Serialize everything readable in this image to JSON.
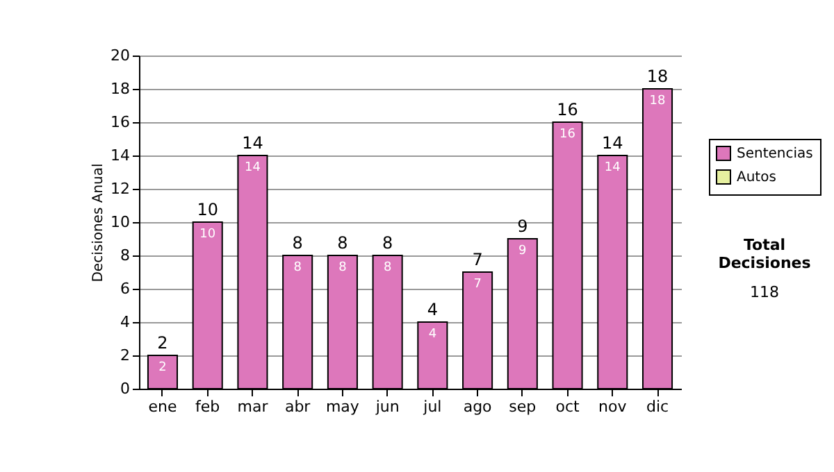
{
  "chart_data": {
    "type": "bar",
    "ylabel": "Decisiones Anual",
    "categories": [
      "ene",
      "feb",
      "mar",
      "abr",
      "may",
      "jun",
      "jul",
      "ago",
      "sep",
      "oct",
      "nov",
      "dic"
    ],
    "series": [
      {
        "name": "Sentencias",
        "color": "#dd77bb",
        "values": [
          2,
          10,
          14,
          8,
          8,
          8,
          4,
          7,
          9,
          16,
          14,
          18
        ]
      },
      {
        "name": "Autos",
        "color": "#e6f0a0",
        "values": [
          null,
          null,
          null,
          null,
          null,
          null,
          null,
          null,
          null,
          null,
          null,
          null
        ]
      }
    ],
    "stacked": true,
    "data_labels": true,
    "totals": [
      "2",
      "10",
      "14",
      "8",
      "8",
      "8",
      "4",
      "7",
      "9",
      "16",
      "14",
      "18"
    ],
    "ylim": [
      0,
      20
    ],
    "yticks": [
      0,
      2,
      4,
      6,
      8,
      10,
      12,
      14,
      16,
      18,
      20
    ],
    "grid": "y",
    "legend": "right",
    "annotations": [
      "Total Decisiones",
      "118"
    ]
  }
}
